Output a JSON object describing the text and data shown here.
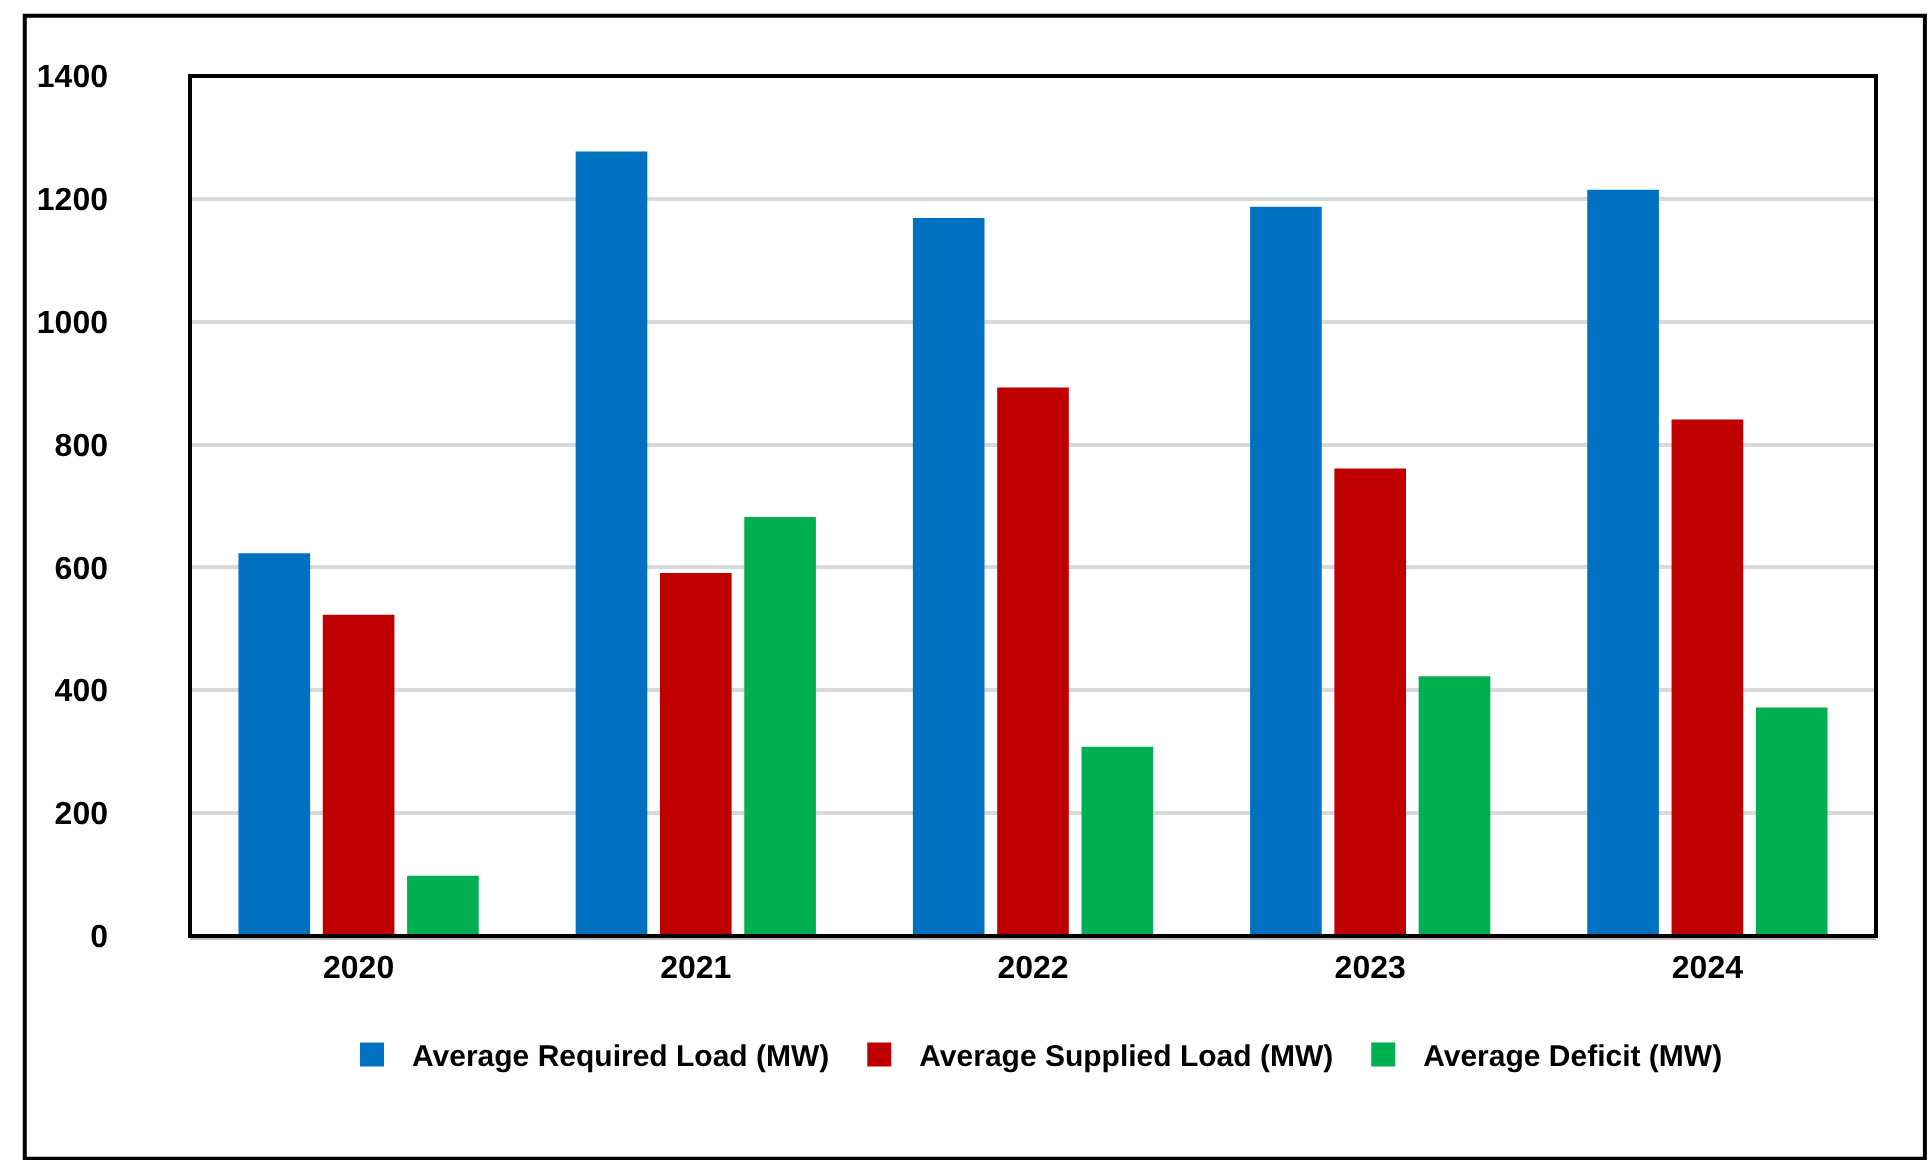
{
  "chart_data": {
    "type": "bar",
    "categories": [
      "2020",
      "2021",
      "2022",
      "2023",
      "2024"
    ],
    "series": [
      {
        "name": "Average Required Load (MW)",
        "color": "#0070c0",
        "values": [
          623,
          1277,
          1169,
          1187,
          1215
        ]
      },
      {
        "name": "Average Supplied Load (MW)",
        "color": "#c00000",
        "values": [
          523,
          591,
          893,
          761,
          841
        ]
      },
      {
        "name": "Average Deficit (MW)",
        "color": "#00b050",
        "values": [
          98,
          682,
          308,
          423,
          372
        ]
      }
    ],
    "ylim": [
      0,
      1400
    ],
    "yticks": [
      0,
      200,
      400,
      600,
      800,
      1000,
      1200,
      1400
    ],
    "grid": "y",
    "legend": "bottom"
  }
}
